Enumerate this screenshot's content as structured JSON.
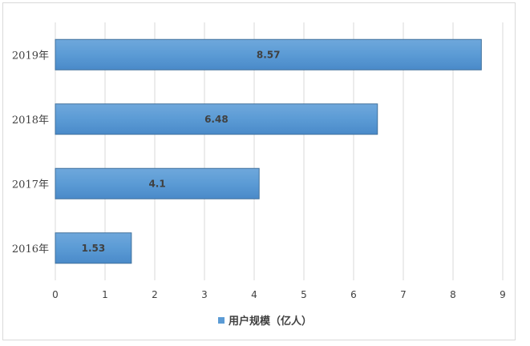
{
  "chart_data": {
    "type": "bar",
    "orientation": "horizontal",
    "categories": [
      "2019年",
      "2018年",
      "2017年",
      "2016年"
    ],
    "series": [
      {
        "name": "用户规模（亿人）",
        "values": [
          8.57,
          6.48,
          4.1,
          1.53
        ],
        "data_labels": [
          "8.57",
          "6.48",
          "4.1",
          "1.53"
        ]
      }
    ],
    "xlim": [
      0,
      9
    ],
    "x_ticks": [
      "0",
      "1",
      "2",
      "3",
      "4",
      "5",
      "6",
      "7",
      "8",
      "9"
    ],
    "title": "",
    "xlabel": "",
    "ylabel": "",
    "grid": "vertical",
    "legend_position": "bottom",
    "colors": {
      "bar": "#5b9bd5",
      "bar_edge": "#41719c",
      "grid": "#d9d9d9",
      "text": "#404040"
    }
  }
}
